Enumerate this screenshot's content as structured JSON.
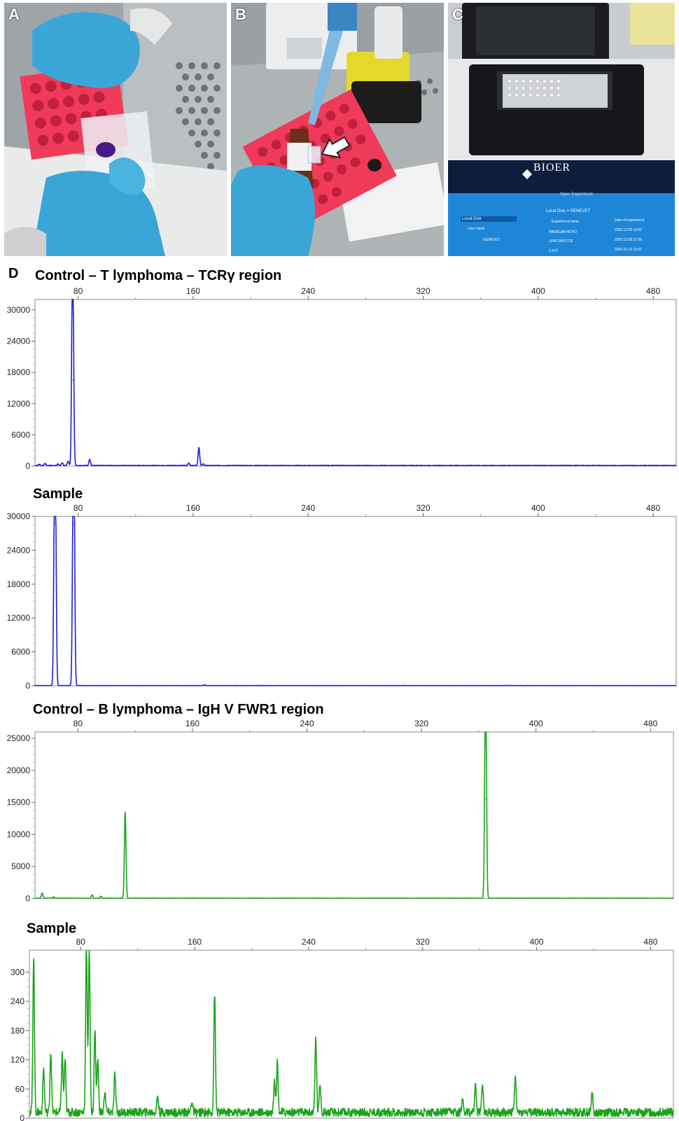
{
  "panels": {
    "a_label": "A",
    "b_label": "B",
    "c_label": "C",
    "d_label": "D"
  },
  "device_screen": {
    "brand": "BIOER",
    "header": "Open Experiment",
    "location": "Local Disk",
    "path": "Local Disk > GENEVET",
    "col_user": "User name",
    "col_experiment": "Experiment name",
    "col_date": "Date of experiment",
    "user": "GENEVET",
    "experiments": [
      "PARRCAN NOVO",
      "LINFCAN1TCR",
      "C-KIT"
    ],
    "dates": [
      "2020.12.09 19:02",
      "2020.12.03 21:09",
      "2020.10.13 13:01"
    ]
  },
  "chart_data": [
    {
      "type": "line",
      "title": "Control – T lymphoma – TCRγ region",
      "color": "#1f1fd6",
      "xlim": [
        50,
        496
      ],
      "xticks": [
        80,
        160,
        240,
        320,
        400,
        480
      ],
      "ylim": [
        0,
        32000
      ],
      "yticks": [
        0,
        6000,
        12000,
        18000,
        24000,
        30000
      ],
      "peaks": [
        {
          "x": 53,
          "y": 250
        },
        {
          "x": 57,
          "y": 400
        },
        {
          "x": 66,
          "y": 300
        },
        {
          "x": 69,
          "y": 500
        },
        {
          "x": 73,
          "y": 800
        },
        {
          "x": 76,
          "y": 32500
        },
        {
          "x": 76.6,
          "y": 16500
        },
        {
          "x": 88,
          "y": 1200
        },
        {
          "x": 157,
          "y": 500
        },
        {
          "x": 164,
          "y": 3500
        },
        {
          "x": 167,
          "y": 300
        }
      ],
      "baseline": 120
    },
    {
      "type": "line",
      "title": "Sample",
      "color": "#1f1fd6",
      "xlim": [
        50,
        496
      ],
      "xticks": [
        80,
        160,
        240,
        320,
        400,
        480
      ],
      "ylim": [
        0,
        30000
      ],
      "yticks": [
        0,
        6000,
        12000,
        18000,
        24000,
        30000
      ],
      "peaks": [
        {
          "x": 63.5,
          "y": 28800
        },
        {
          "x": 64.3,
          "y": 28500
        },
        {
          "x": 76.5,
          "y": 28800
        },
        {
          "x": 77.2,
          "y": 28500
        },
        {
          "x": 168,
          "y": 150
        }
      ],
      "baseline": 40
    },
    {
      "type": "line",
      "title": "Control – B lymphoma – IgH V FWR1 region",
      "color": "#19a319",
      "xlim": [
        50,
        496
      ],
      "xticks": [
        80,
        160,
        240,
        320,
        400,
        480
      ],
      "ylim": [
        0,
        26000
      ],
      "yticks": [
        0,
        5000,
        10000,
        15000,
        20000,
        25000
      ],
      "peaks": [
        {
          "x": 55,
          "y": 800
        },
        {
          "x": 63,
          "y": 200
        },
        {
          "x": 90,
          "y": 500
        },
        {
          "x": 96,
          "y": 300
        },
        {
          "x": 113,
          "y": 13500
        },
        {
          "x": 365,
          "y": 24000
        },
        {
          "x": 364.5,
          "y": 15500
        }
      ],
      "baseline": 60
    },
    {
      "type": "line",
      "title": "Sample",
      "color": "#19a319",
      "xlim": [
        44,
        496
      ],
      "xticks": [
        80,
        160,
        240,
        320,
        400,
        480
      ],
      "ylim": [
        0,
        345
      ],
      "yticks": [
        0,
        60,
        120,
        180,
        240,
        300
      ],
      "peaks": [
        {
          "x": 47,
          "y": 325
        },
        {
          "x": 54,
          "y": 90
        },
        {
          "x": 59,
          "y": 125
        },
        {
          "x": 67,
          "y": 120
        },
        {
          "x": 69,
          "y": 110
        },
        {
          "x": 84,
          "y": 345
        },
        {
          "x": 86,
          "y": 340
        },
        {
          "x": 90,
          "y": 170
        },
        {
          "x": 92,
          "y": 110
        },
        {
          "x": 97,
          "y": 45
        },
        {
          "x": 104,
          "y": 80
        },
        {
          "x": 134,
          "y": 35
        },
        {
          "x": 158,
          "y": 25
        },
        {
          "x": 174,
          "y": 245
        },
        {
          "x": 216,
          "y": 70
        },
        {
          "x": 218,
          "y": 105
        },
        {
          "x": 245,
          "y": 155
        },
        {
          "x": 248,
          "y": 60
        },
        {
          "x": 348,
          "y": 35
        },
        {
          "x": 357,
          "y": 55
        },
        {
          "x": 362,
          "y": 60
        },
        {
          "x": 385,
          "y": 75
        },
        {
          "x": 439,
          "y": 40
        }
      ],
      "baseline": 8
    }
  ]
}
